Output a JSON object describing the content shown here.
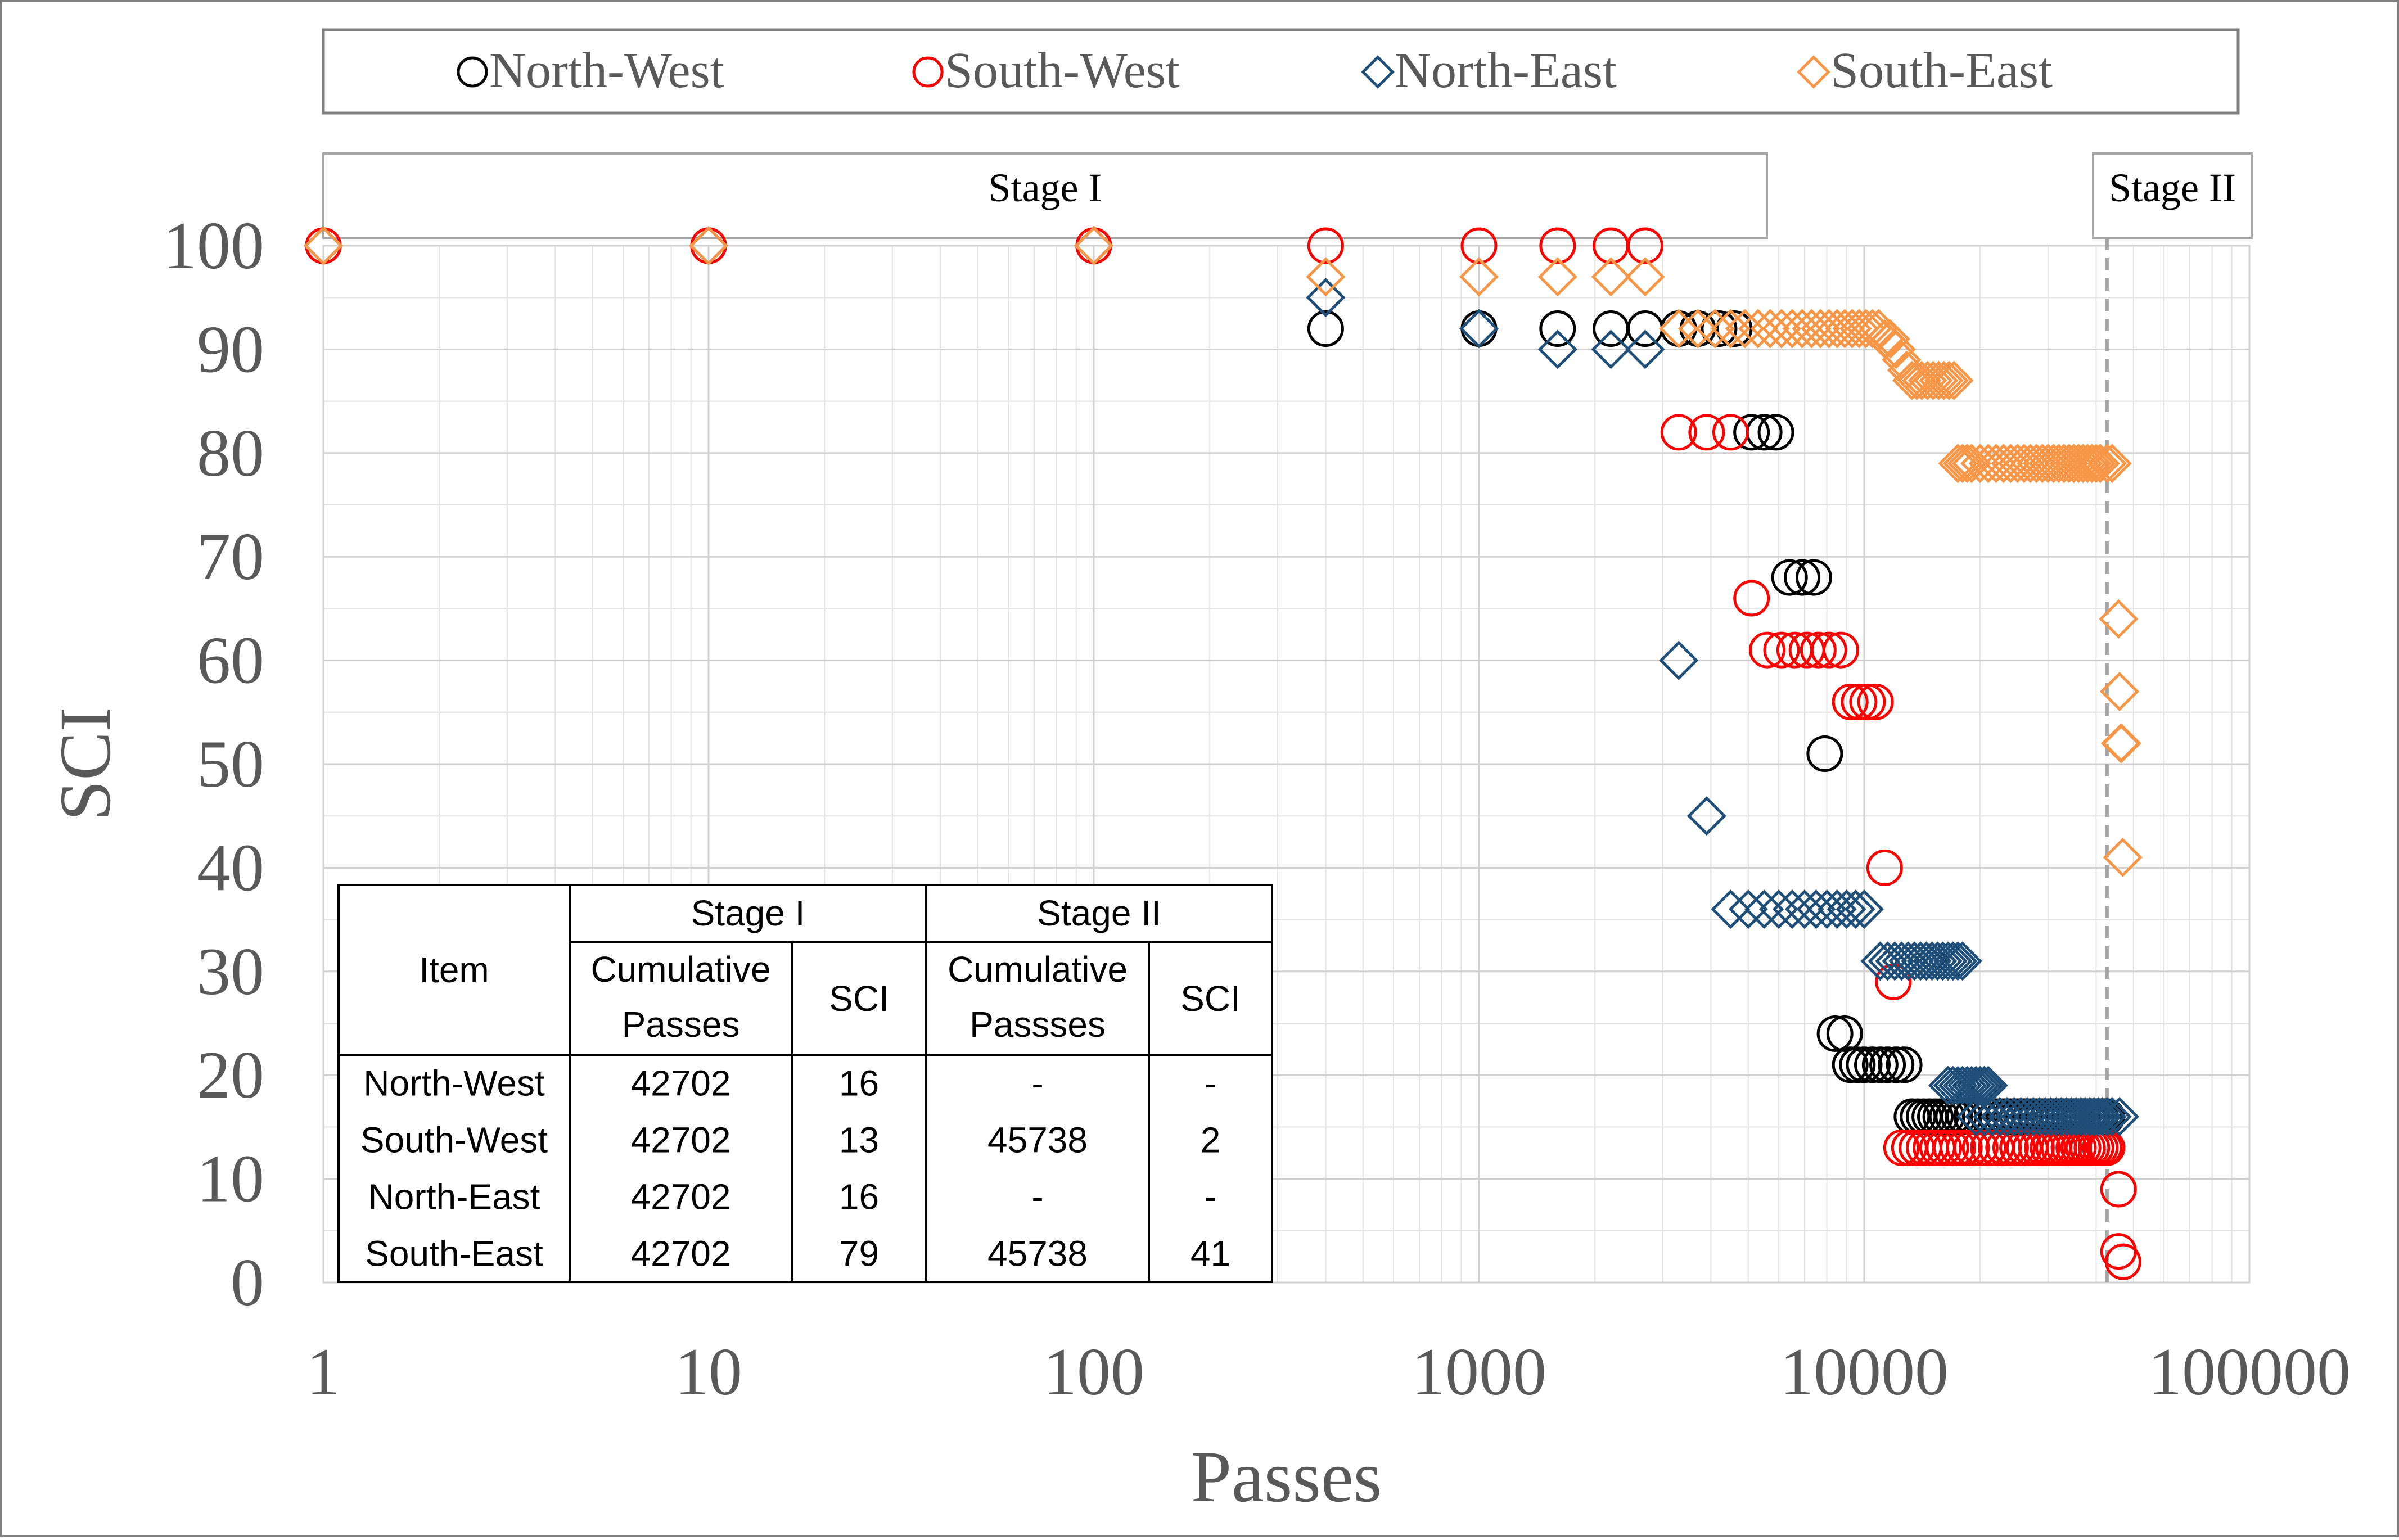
{
  "chart_data": {
    "type": "scatter",
    "xlabel": "Passes",
    "ylabel": "SCI",
    "xscale": "log",
    "xlim": [
      1,
      100000
    ],
    "ylim": [
      0,
      100
    ],
    "x_ticks": [
      "1",
      "10",
      "100",
      "1000",
      "10000",
      "100000"
    ],
    "y_ticks": [
      "0",
      "10",
      "20",
      "30",
      "40",
      "50",
      "60",
      "70",
      "80",
      "90",
      "100"
    ],
    "grid": true,
    "legend_position": "top",
    "stage_labels": [
      "Stage  I",
      "Stage II"
    ],
    "stage_boundary_x": 42702,
    "series": [
      {
        "name": "North-West",
        "marker": "circle",
        "color": "#000000",
        "points": [
          [
            1,
            100
          ],
          [
            10,
            100
          ],
          [
            100,
            100
          ],
          [
            400,
            92
          ],
          [
            1000,
            92
          ],
          [
            1600,
            92
          ],
          [
            2200,
            92
          ],
          [
            2700,
            92
          ],
          [
            3300,
            92
          ],
          [
            3700,
            92
          ],
          [
            4200,
            92
          ],
          [
            4600,
            92
          ],
          [
            5100,
            82
          ],
          [
            5500,
            82
          ],
          [
            5900,
            82
          ],
          [
            6400,
            68
          ],
          [
            6900,
            68
          ],
          [
            7400,
            68
          ],
          [
            7900,
            51
          ],
          [
            8400,
            24
          ],
          [
            8900,
            24
          ],
          [
            9200,
            21
          ],
          [
            9600,
            21
          ],
          [
            10000,
            21
          ],
          [
            10500,
            21
          ],
          [
            11000,
            21
          ],
          [
            11500,
            21
          ],
          [
            12100,
            21
          ],
          [
            12700,
            21
          ],
          [
            13300,
            16
          ],
          [
            13800,
            16
          ],
          [
            14300,
            16
          ],
          [
            14800,
            16
          ],
          [
            15300,
            16
          ],
          [
            15800,
            16
          ],
          [
            16400,
            16
          ],
          [
            17000,
            16
          ],
          [
            17600,
            16
          ],
          [
            18200,
            16
          ],
          [
            19000,
            16
          ],
          [
            20000,
            16
          ],
          [
            21000,
            16
          ],
          [
            22000,
            16
          ],
          [
            23000,
            16
          ],
          [
            24000,
            16
          ],
          [
            25000,
            16
          ],
          [
            26000,
            16
          ],
          [
            27000,
            16
          ],
          [
            28000,
            16
          ],
          [
            29000,
            16
          ],
          [
            30000,
            16
          ],
          [
            31000,
            16
          ],
          [
            32000,
            16
          ],
          [
            33000,
            16
          ],
          [
            34000,
            16
          ],
          [
            35000,
            16
          ],
          [
            36000,
            16
          ],
          [
            37000,
            16
          ],
          [
            38000,
            16
          ],
          [
            39000,
            16
          ],
          [
            40000,
            16
          ],
          [
            41000,
            16
          ],
          [
            42000,
            16
          ],
          [
            42702,
            16
          ]
        ]
      },
      {
        "name": "South-West",
        "marker": "circle",
        "color": "#ff0000",
        "points": [
          [
            1,
            100
          ],
          [
            10,
            100
          ],
          [
            100,
            100
          ],
          [
            400,
            100
          ],
          [
            1000,
            100
          ],
          [
            1600,
            100
          ],
          [
            2200,
            100
          ],
          [
            2700,
            100
          ],
          [
            3300,
            82
          ],
          [
            3900,
            82
          ],
          [
            4500,
            82
          ],
          [
            5100,
            66
          ],
          [
            5600,
            61
          ],
          [
            6100,
            61
          ],
          [
            6600,
            61
          ],
          [
            7100,
            61
          ],
          [
            7600,
            61
          ],
          [
            8100,
            61
          ],
          [
            8700,
            61
          ],
          [
            9200,
            56
          ],
          [
            9700,
            56
          ],
          [
            10200,
            56
          ],
          [
            10700,
            56
          ],
          [
            11300,
            40
          ],
          [
            11900,
            29
          ],
          [
            12500,
            13
          ],
          [
            13100,
            13
          ],
          [
            13700,
            13
          ],
          [
            14300,
            13
          ],
          [
            14900,
            13
          ],
          [
            15500,
            13
          ],
          [
            16100,
            13
          ],
          [
            16800,
            13
          ],
          [
            17500,
            13
          ],
          [
            18200,
            13
          ],
          [
            19000,
            13
          ],
          [
            20000,
            13
          ],
          [
            21000,
            13
          ],
          [
            22000,
            13
          ],
          [
            23000,
            13
          ],
          [
            24000,
            13
          ],
          [
            25000,
            13
          ],
          [
            26000,
            13
          ],
          [
            27000,
            13
          ],
          [
            28000,
            13
          ],
          [
            29000,
            13
          ],
          [
            30000,
            13
          ],
          [
            31000,
            13
          ],
          [
            32000,
            13
          ],
          [
            33000,
            13
          ],
          [
            34000,
            13
          ],
          [
            35000,
            13
          ],
          [
            36000,
            13
          ],
          [
            37000,
            13
          ],
          [
            38000,
            13
          ],
          [
            39000,
            13
          ],
          [
            40000,
            13
          ],
          [
            41000,
            13
          ],
          [
            42000,
            13
          ],
          [
            42702,
            13
          ],
          [
            45738,
            9
          ],
          [
            45738,
            3
          ],
          [
            47000,
            2
          ]
        ]
      },
      {
        "name": "North-East",
        "marker": "diamond",
        "color": "#1f4e79",
        "points": [
          [
            1,
            100
          ],
          [
            10,
            100
          ],
          [
            100,
            100
          ],
          [
            400,
            95
          ],
          [
            1000,
            92
          ],
          [
            1600,
            90
          ],
          [
            2200,
            90
          ],
          [
            2700,
            90
          ],
          [
            3300,
            60
          ],
          [
            3900,
            45
          ],
          [
            4500,
            36
          ],
          [
            5000,
            36
          ],
          [
            5500,
            36
          ],
          [
            6000,
            36
          ],
          [
            6500,
            36
          ],
          [
            7000,
            36
          ],
          [
            7500,
            36
          ],
          [
            8000,
            36
          ],
          [
            8500,
            36
          ],
          [
            9000,
            36
          ],
          [
            9500,
            36
          ],
          [
            10000,
            36
          ],
          [
            11000,
            31
          ],
          [
            11500,
            31
          ],
          [
            12000,
            31
          ],
          [
            12500,
            31
          ],
          [
            13000,
            31
          ],
          [
            13500,
            31
          ],
          [
            14000,
            31
          ],
          [
            14500,
            31
          ],
          [
            15000,
            31
          ],
          [
            15500,
            31
          ],
          [
            16000,
            31
          ],
          [
            16500,
            31
          ],
          [
            17000,
            31
          ],
          [
            17500,
            31
          ],
          [
            18000,
            31
          ],
          [
            16500,
            19
          ],
          [
            17000,
            19
          ],
          [
            17500,
            19
          ],
          [
            18000,
            19
          ],
          [
            18500,
            19
          ],
          [
            19000,
            19
          ],
          [
            19500,
            19
          ],
          [
            20000,
            19
          ],
          [
            20500,
            19
          ],
          [
            21000,
            19
          ],
          [
            19500,
            16
          ],
          [
            20500,
            16
          ],
          [
            21500,
            16
          ],
          [
            22500,
            16
          ],
          [
            23500,
            16
          ],
          [
            24500,
            16
          ],
          [
            25500,
            16
          ],
          [
            26500,
            16
          ],
          [
            27500,
            16
          ],
          [
            28500,
            16
          ],
          [
            29500,
            16
          ],
          [
            30500,
            16
          ],
          [
            31500,
            16
          ],
          [
            32500,
            16
          ],
          [
            33500,
            16
          ],
          [
            34500,
            16
          ],
          [
            35500,
            16
          ],
          [
            36500,
            16
          ],
          [
            37500,
            16
          ],
          [
            38500,
            16
          ],
          [
            39500,
            16
          ],
          [
            40500,
            16
          ],
          [
            41500,
            16
          ],
          [
            42702,
            16
          ],
          [
            44000,
            16
          ],
          [
            46000,
            16
          ]
        ]
      },
      {
        "name": "South-East",
        "marker": "diamond",
        "color": "#f79646",
        "points": [
          [
            1,
            100
          ],
          [
            10,
            100
          ],
          [
            100,
            100
          ],
          [
            400,
            97
          ],
          [
            1000,
            97
          ],
          [
            1600,
            97
          ],
          [
            2200,
            97
          ],
          [
            2700,
            97
          ],
          [
            3300,
            92
          ],
          [
            3700,
            92
          ],
          [
            4100,
            92
          ],
          [
            4500,
            92
          ],
          [
            4900,
            92
          ],
          [
            5300,
            92
          ],
          [
            5700,
            92
          ],
          [
            6100,
            92
          ],
          [
            6500,
            92
          ],
          [
            6900,
            92
          ],
          [
            7300,
            92
          ],
          [
            7700,
            92
          ],
          [
            8100,
            92
          ],
          [
            8500,
            92
          ],
          [
            8900,
            92
          ],
          [
            9300,
            92
          ],
          [
            9700,
            92
          ],
          [
            10100,
            92
          ],
          [
            10500,
            92
          ],
          [
            10900,
            92
          ],
          [
            11300,
            91
          ],
          [
            11700,
            91
          ],
          [
            12100,
            90
          ],
          [
            12500,
            89
          ],
          [
            12900,
            88
          ],
          [
            13300,
            87
          ],
          [
            13700,
            87
          ],
          [
            14100,
            87
          ],
          [
            14600,
            87
          ],
          [
            15100,
            87
          ],
          [
            15600,
            87
          ],
          [
            16100,
            87
          ],
          [
            16600,
            87
          ],
          [
            17100,
            87
          ],
          [
            17500,
            79
          ],
          [
            18000,
            79
          ],
          [
            18500,
            79
          ],
          [
            19000,
            79
          ],
          [
            20000,
            79
          ],
          [
            21000,
            79
          ],
          [
            22000,
            79
          ],
          [
            23000,
            79
          ],
          [
            24000,
            79
          ],
          [
            25000,
            79
          ],
          [
            26000,
            79
          ],
          [
            27000,
            79
          ],
          [
            28000,
            79
          ],
          [
            29000,
            79
          ],
          [
            30000,
            79
          ],
          [
            31000,
            79
          ],
          [
            32000,
            79
          ],
          [
            33000,
            79
          ],
          [
            34000,
            79
          ],
          [
            35000,
            79
          ],
          [
            36000,
            79
          ],
          [
            37000,
            79
          ],
          [
            38000,
            79
          ],
          [
            39000,
            79
          ],
          [
            40000,
            79
          ],
          [
            41000,
            79
          ],
          [
            42702,
            79
          ],
          [
            44000,
            79
          ],
          [
            45738,
            64
          ],
          [
            46000,
            57
          ],
          [
            46300,
            52
          ],
          [
            46600,
            52
          ],
          [
            46900,
            41
          ]
        ]
      }
    ],
    "inset_table": {
      "group_headers": [
        "Stage I",
        "Stage II"
      ],
      "col_item": "Item",
      "col_headers": [
        "Cumulative Passes",
        "SCI",
        "Cumulative Passses",
        "SCI"
      ],
      "rows": [
        [
          "North-West",
          "42702",
          "16",
          "-",
          "-"
        ],
        [
          "South-West",
          "42702",
          "13",
          "45738",
          "2"
        ],
        [
          "North-East",
          "42702",
          "16",
          "-",
          "-"
        ],
        [
          "South-East",
          "42702",
          "79",
          "45738",
          "41"
        ]
      ]
    }
  }
}
